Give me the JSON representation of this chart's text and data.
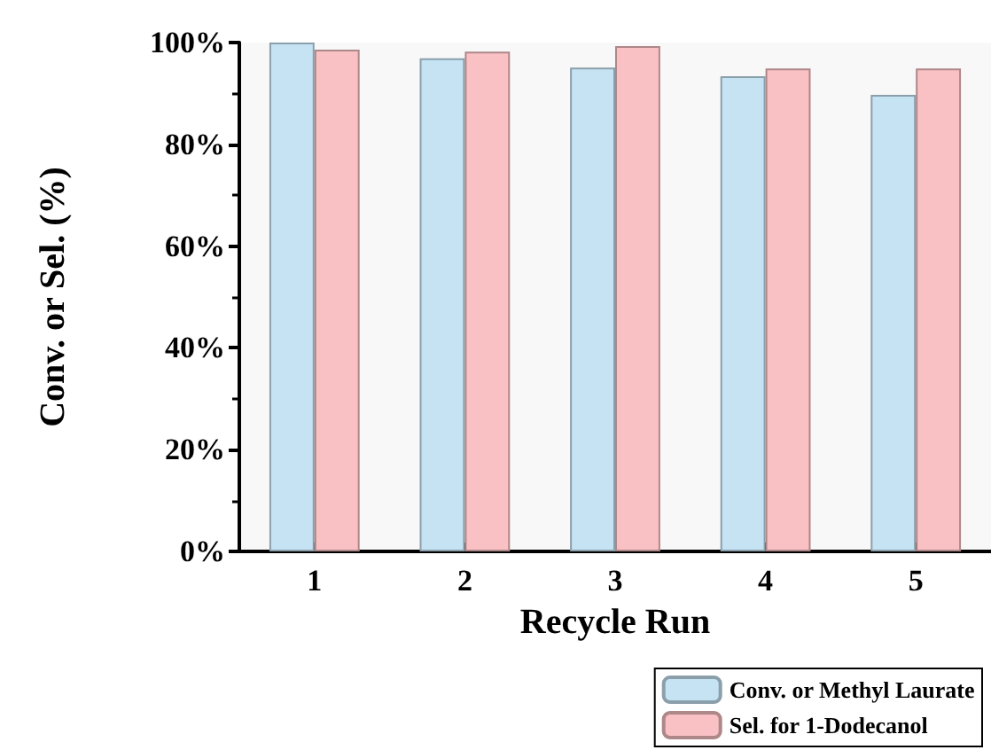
{
  "chart_data": {
    "type": "bar",
    "xlabel": "Recycle Run",
    "ylabel": "Conv. or Sel. (%)",
    "categories": [
      "1",
      "2",
      "3",
      "4",
      "5"
    ],
    "series": [
      {
        "name": "Conv. or Methyl Laurate",
        "color": "#c6e3f4",
        "values": [
          100,
          96.9,
          95.1,
          93.4,
          89.7
        ]
      },
      {
        "name": "Sel. for 1-Dodecanol",
        "color": "#f9c1c3",
        "values": [
          98.6,
          98.2,
          99.3,
          94.9,
          94.9
        ]
      }
    ],
    "ylim": [
      0,
      100
    ],
    "yticks": [
      {
        "value": 0,
        "label": "0%"
      },
      {
        "value": 20,
        "label": "20%"
      },
      {
        "value": 40,
        "label": "40%"
      },
      {
        "value": 60,
        "label": "60%"
      },
      {
        "value": 80,
        "label": "80%"
      },
      {
        "value": 100,
        "label": "100%"
      }
    ],
    "grid": false,
    "legend": "bottom right"
  }
}
